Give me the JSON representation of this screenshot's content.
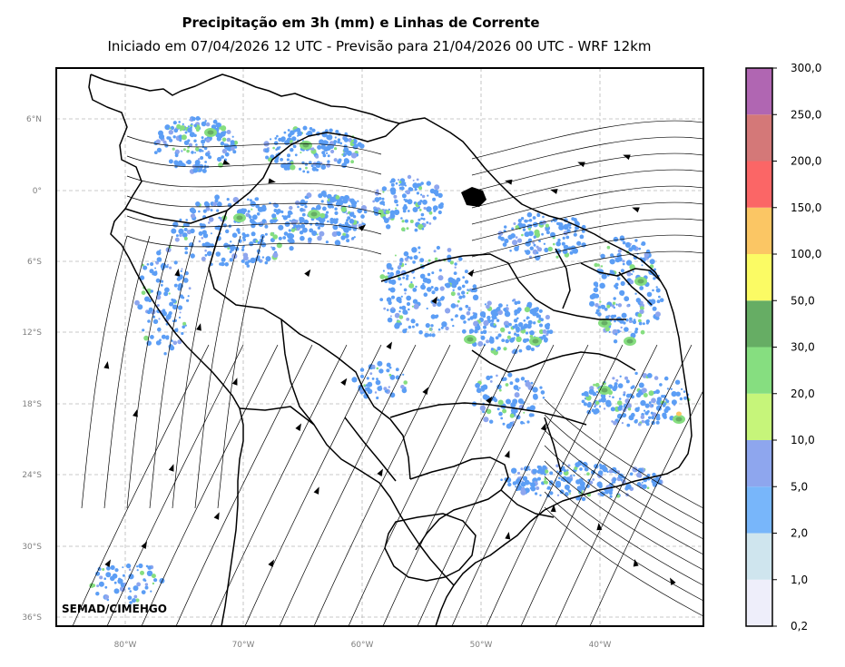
{
  "title": "Precipitação em 3h (mm) e Linhas de Corrente",
  "subtitle": "Iniciado em 07/04/2026 12 UTC - Previsão para 21/04/2026 00 UTC - WRF 12km",
  "credit": "SEMAD/CIMEHGO",
  "lat_ticks": [
    "6°N",
    "0°",
    "6°S",
    "12°S",
    "18°S",
    "24°S",
    "30°S",
    "36°S"
  ],
  "lon_ticks": [
    "80°W",
    "70°W",
    "60°W",
    "50°W",
    "40°W"
  ],
  "colorbar": {
    "labels": [
      "0,2",
      "1,0",
      "2,0",
      "5,0",
      "10,0",
      "20,0",
      "30,0",
      "50,0",
      "100,0",
      "150,0",
      "200,0",
      "250,0",
      "300,0"
    ],
    "colors": [
      "#eeeefa",
      "#cfe5ee",
      "#78b6fa",
      "#8ea6ee",
      "#c6f57a",
      "#86de80",
      "#66ad64",
      "#fbfb64",
      "#fbc664",
      "#fb6666",
      "#d47878",
      "#b066b2"
    ]
  },
  "chart_data": {
    "type": "map",
    "title": "Precipitação em 3h (mm) e Linhas de Corrente",
    "subtitle": "Iniciado em 07/04/2026 12 UTC - Previsão para 21/04/2026 00 UTC - WRF 12km",
    "lat_ticks": [
      "6°N",
      "0°",
      "6°S",
      "12°S",
      "18°S",
      "24°S",
      "30°S",
      "36°S"
    ],
    "lon_ticks": [
      "80°W",
      "70°W",
      "60°W",
      "50°W",
      "40°W"
    ],
    "colorbar_levels": [
      "0,2",
      "1,0",
      "2,0",
      "5,0",
      "10,0",
      "20,0",
      "30,0",
      "50,0",
      "100,0",
      "150,0",
      "200,0",
      "250,0",
      "300,0"
    ],
    "grid": true
  }
}
